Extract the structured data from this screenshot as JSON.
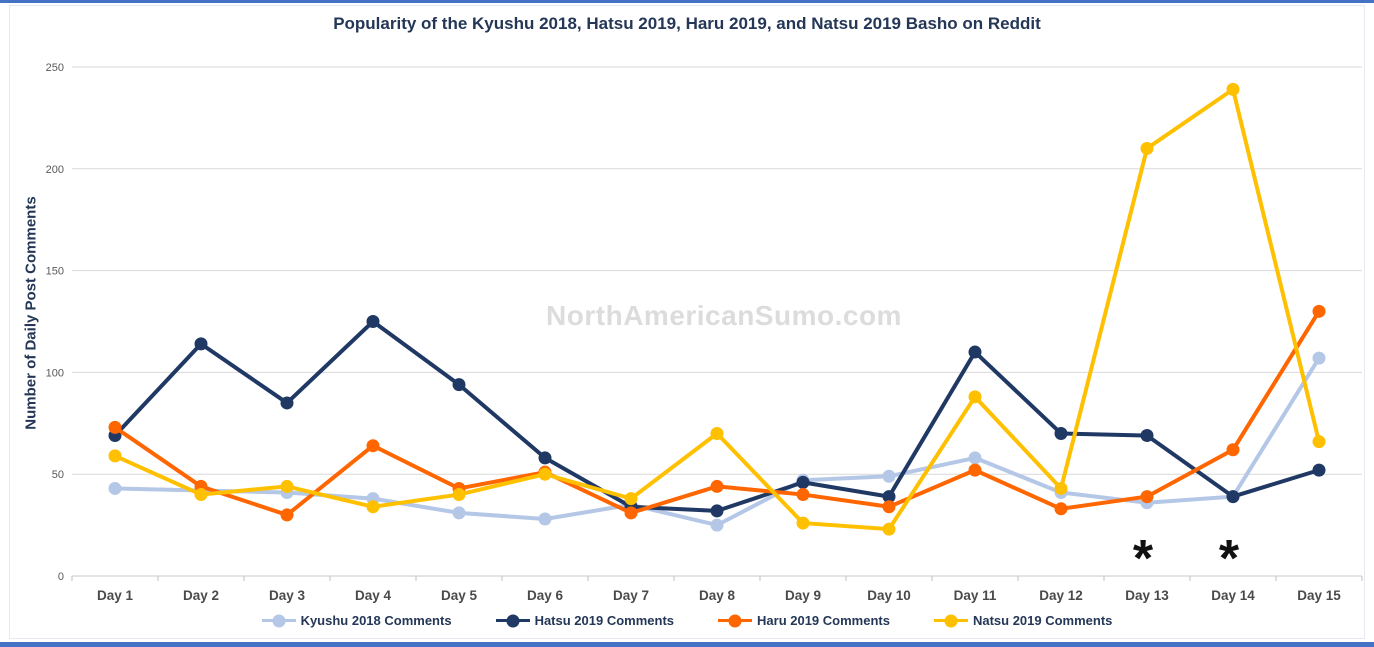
{
  "page": {
    "border_color": "#4472C4",
    "watermark": "NorthAmericanSumo.com"
  },
  "chart_data": {
    "type": "line",
    "title": "Popularity of the Kyushu 2018, Hatsu 2019, Haru 2019, and Natsu 2019 Basho on Reddit",
    "xlabel": "",
    "ylabel": "Number of Daily Post Comments",
    "categories": [
      "Day 1",
      "Day 2",
      "Day 3",
      "Day 4",
      "Day 5",
      "Day 6",
      "Day 7",
      "Day 8",
      "Day 9",
      "Day 10",
      "Day 11",
      "Day 12",
      "Day 13",
      "Day 14",
      "Day 15"
    ],
    "y_ticks": [
      0,
      50,
      100,
      150,
      200,
      250
    ],
    "ylim": [
      0,
      250
    ],
    "grid": true,
    "legend_position": "bottom",
    "series": [
      {
        "name": "Kyushu 2018 Comments",
        "color": "#B4C7E7",
        "values": [
          43,
          42,
          41,
          38,
          31,
          28,
          35,
          25,
          47,
          49,
          58,
          41,
          36,
          39,
          107
        ]
      },
      {
        "name": "Hatsu 2019 Comments",
        "color": "#1F3864",
        "values": [
          69,
          114,
          85,
          125,
          94,
          58,
          34,
          32,
          46,
          39,
          110,
          70,
          69,
          39,
          52
        ]
      },
      {
        "name": "Haru 2019 Comments",
        "color": "#FF6600",
        "values": [
          73,
          44,
          30,
          64,
          43,
          51,
          31,
          44,
          40,
          34,
          52,
          33,
          39,
          62,
          130
        ]
      },
      {
        "name": "Natsu 2019 Comments",
        "color": "#FFC000",
        "values": [
          59,
          40,
          44,
          34,
          40,
          50,
          38,
          70,
          26,
          23,
          88,
          43,
          210,
          239,
          66
        ]
      }
    ],
    "annotations": [
      {
        "text": "*",
        "category": "Day 13"
      },
      {
        "text": "*",
        "category": "Day 14"
      }
    ]
  }
}
